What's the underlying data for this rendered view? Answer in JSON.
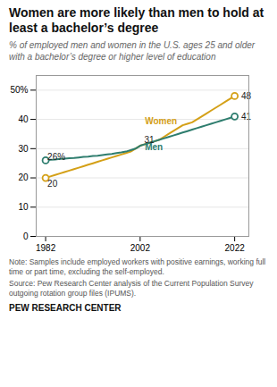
{
  "chart_data": {
    "type": "line",
    "title": "Women are more likely than men to hold at least a bachelor’s degree",
    "subtitle": "% of employed men and women in the U.S. ages 25 and older with a bachelor’s degree or higher level of education",
    "note": "Note: Samples include employed workers with positive earnings, working full time or part time, excluding the self-employed.",
    "source": "Source: Pew Research Center analysis of the Current Population Survey outgoing rotation group files (IPUMS).",
    "footer": "PEW RESEARCH CENTER",
    "x": [
      1982,
      1983,
      1984,
      1985,
      1986,
      1987,
      1988,
      1989,
      1990,
      1991,
      1992,
      1993,
      1994,
      1995,
      1996,
      1997,
      1998,
      1999,
      2000,
      2001,
      2002,
      2003,
      2004,
      2005,
      2006,
      2007,
      2008,
      2009,
      2010,
      2011,
      2012,
      2013,
      2014,
      2015,
      2016,
      2017,
      2018,
      2019,
      2020,
      2021,
      2022
    ],
    "series": [
      {
        "name": "Women",
        "color": "#D4A017",
        "label_x": 2003,
        "label_y": 38.5,
        "values": [
          20,
          20.5,
          21,
          21.5,
          22,
          22.5,
          23,
          23.5,
          24,
          24.5,
          25,
          25.5,
          26,
          26.5,
          27,
          27.5,
          28,
          28.5,
          29,
          30,
          31,
          31.5,
          32,
          32.5,
          33,
          34,
          35,
          36,
          37,
          38,
          38.5,
          39,
          40,
          41,
          42,
          43,
          44,
          45,
          46,
          47,
          48
        ]
      },
      {
        "name": "Men",
        "color": "#2E7D6E",
        "label_x": 2003,
        "label_y": 29.5,
        "values": [
          26,
          26.2,
          26.3,
          26.5,
          26.6,
          26.7,
          26.8,
          27,
          27.2,
          27.3,
          27.5,
          27.6,
          27.8,
          28,
          28.2,
          28.5,
          28.7,
          29,
          29.5,
          30,
          31,
          31.5,
          32,
          32.5,
          33,
          33.5,
          34,
          34.5,
          35,
          35.5,
          36,
          36.5,
          37,
          37.5,
          38,
          38.5,
          39,
          39.5,
          40,
          40.5,
          41
        ]
      }
    ],
    "annotations": [
      {
        "text": "26%",
        "x": 1982,
        "y": 26
      },
      {
        "text": "20",
        "x": 1982,
        "y": 19
      },
      {
        "text": "31",
        "x": 2002.5,
        "y": 32
      },
      {
        "text": "48",
        "x": 2023,
        "y": 48
      },
      {
        "text": "41",
        "x": 2023,
        "y": 41
      }
    ],
    "marker": "circle",
    "xlim": [
      1980,
      2025
    ],
    "xticks": [
      1982,
      2002,
      2022
    ],
    "ylim": [
      0,
      55
    ],
    "yticks": [
      0,
      10,
      20,
      30,
      40,
      {
        "value": 50,
        "label": "50%"
      }
    ],
    "grid": "y"
  }
}
